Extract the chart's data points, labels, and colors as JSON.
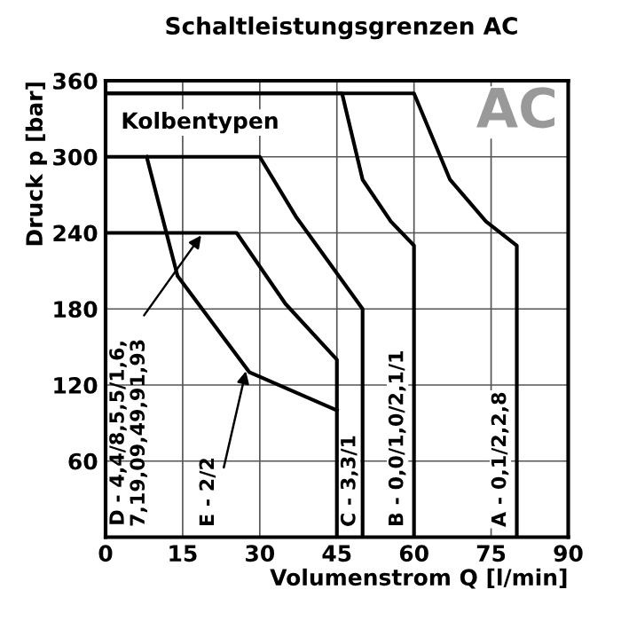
{
  "chart_data": {
    "type": "line",
    "title": "Schaltleistungsgrenzen AC",
    "xlabel": "Volumenstrom Q [l/min]",
    "ylabel": "Druck p [bar]",
    "series": [
      {
        "color": "#000000",
        "x": [
          0,
          60,
          67,
          74,
          80,
          80
        ],
        "values": [
          350,
          350,
          282,
          249,
          230,
          0
        ]
      },
      {
        "color": "#000000",
        "x": [
          0,
          46,
          50,
          55.5,
          60,
          60
        ],
        "values": [
          350,
          350,
          282,
          249,
          230,
          0
        ]
      },
      {
        "color": "#000000",
        "x": [
          0,
          30,
          37,
          50,
          50
        ],
        "values": [
          300,
          300,
          253,
          180,
          0
        ]
      },
      {
        "color": "#000000",
        "x": [
          8,
          14,
          28,
          45,
          45
        ],
        "values": [
          300,
          206,
          130,
          100,
          100
        ]
      },
      {
        "color": "#000000",
        "x": [
          0,
          25.5,
          35,
          45,
          45
        ],
        "values": [
          240,
          240,
          184,
          140,
          0
        ]
      }
    ],
    "annotations": [
      {
        "text": "A - 0,1/2,2,8",
        "x": 80,
        "y": 0
      },
      {
        "text": "B - 0,0/1,0/2,1/1",
        "x": 60,
        "y": 0
      },
      {
        "text": "C - 3,3/1",
        "x": 50,
        "y": 0
      },
      {
        "text": "D - 4,4/8,5,5/1,6,\n7,19,09,49,91,93",
        "x": 18.6,
        "y": 238
      },
      {
        "text": "E - 2/2",
        "x": 27.3,
        "y": 131
      },
      "Kolbentypen",
      "AC"
    ],
    "xlim": [
      0,
      90
    ],
    "ylim": [
      0,
      360
    ],
    "xticks": [
      0,
      15,
      30,
      45,
      60,
      75,
      90
    ],
    "yticks": [
      60,
      120,
      180,
      240,
      300,
      360
    ],
    "grid": true,
    "legend": false,
    "marker": "none",
    "line_style": "solid"
  }
}
